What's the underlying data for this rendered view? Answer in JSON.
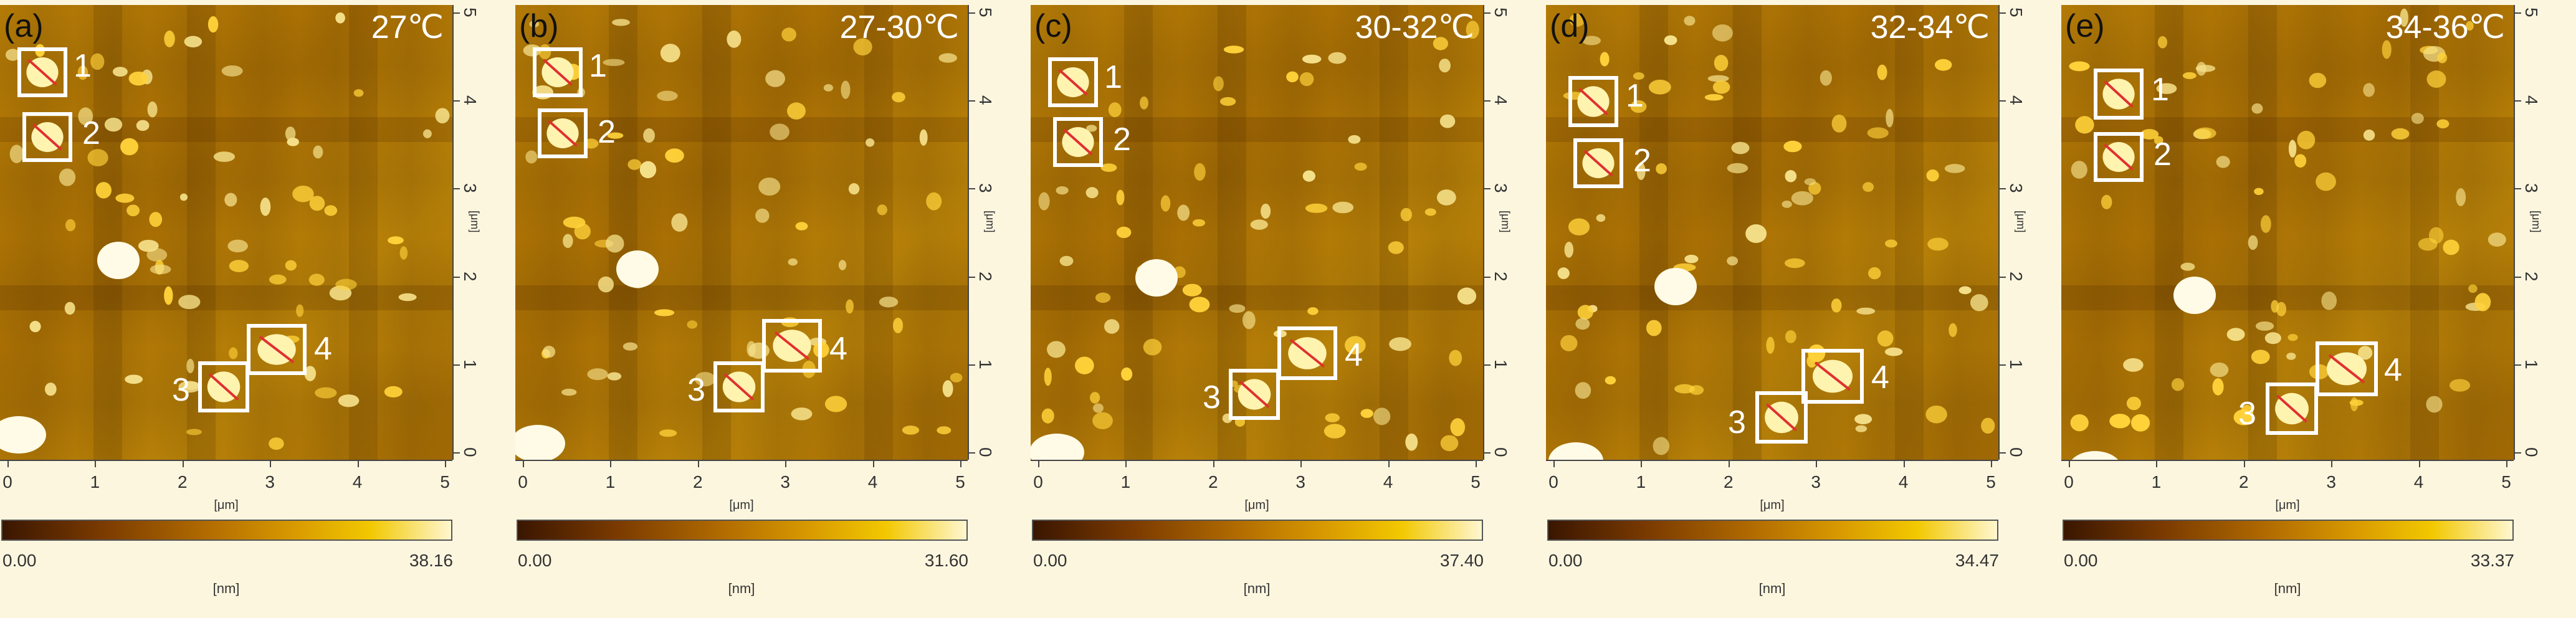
{
  "panels": [
    {
      "label": "(a)",
      "temp": "27℃",
      "max": "38.16",
      "min": "0.00"
    },
    {
      "label": "(b)",
      "temp": "27-30℃",
      "max": "31.60",
      "min": "0.00"
    },
    {
      "label": "(c)",
      "temp": "30-32℃",
      "max": "37.40",
      "min": "0.00"
    },
    {
      "label": "(d)",
      "temp": "32-34℃",
      "max": "34.47",
      "min": "0.00"
    },
    {
      "label": "(e)",
      "temp": "34-36℃",
      "max": "33.37",
      "min": "0.00"
    }
  ],
  "axis": {
    "ticks": [
      "0",
      "1",
      "2",
      "3",
      "4",
      "5"
    ],
    "x_unit": "[μm]",
    "y_unit": "[μm]",
    "color_unit": "[nm]"
  },
  "box_labels": [
    "1",
    "2",
    "3",
    "4"
  ],
  "colors": {
    "background": "#fdf6df",
    "afm_base": "#b37a06",
    "box": "#ffffff",
    "line_cut": "#e03030"
  }
}
